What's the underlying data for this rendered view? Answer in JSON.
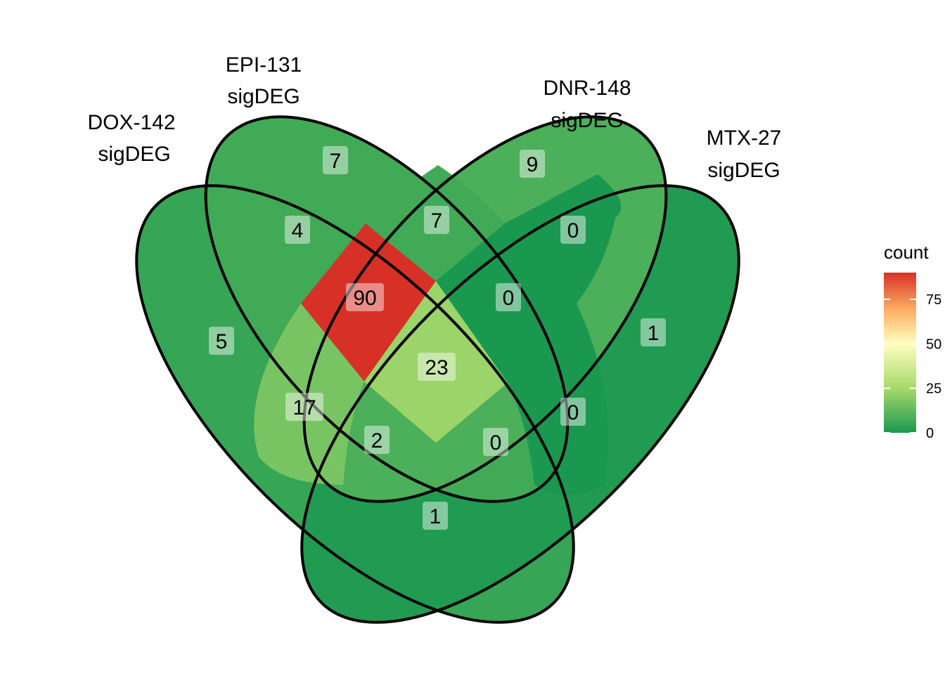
{
  "sets": [
    {
      "id": "dox",
      "title": "DOX-142",
      "subtitle": "sigDEG"
    },
    {
      "id": "epi",
      "title": "EPI-131",
      "subtitle": "sigDEG"
    },
    {
      "id": "dnr",
      "title": "DNR-148",
      "subtitle": "sigDEG"
    },
    {
      "id": "mtx",
      "title": "MTX-27",
      "subtitle": "sigDEG"
    }
  ],
  "regions": [
    {
      "sets": [
        "dox"
      ],
      "count": 5
    },
    {
      "sets": [
        "epi"
      ],
      "count": 7
    },
    {
      "sets": [
        "dnr"
      ],
      "count": 9
    },
    {
      "sets": [
        "mtx"
      ],
      "count": 1
    },
    {
      "sets": [
        "dox",
        "epi"
      ],
      "count": 4
    },
    {
      "sets": [
        "epi",
        "dnr"
      ],
      "count": 7
    },
    {
      "sets": [
        "dnr",
        "mtx"
      ],
      "count": 0
    },
    {
      "sets": [
        "dox",
        "epi",
        "dnr"
      ],
      "count": 90
    },
    {
      "sets": [
        "epi",
        "dnr",
        "mtx"
      ],
      "count": 0
    },
    {
      "sets": [
        "dox",
        "dnr"
      ],
      "count": 17
    },
    {
      "sets": [
        "dox",
        "epi",
        "dnr",
        "mtx"
      ],
      "count": 23
    },
    {
      "sets": [
        "epi",
        "mtx"
      ],
      "count": 0
    },
    {
      "sets": [
        "dox",
        "dnr",
        "mtx"
      ],
      "count": 2
    },
    {
      "sets": [
        "dox",
        "epi",
        "mtx"
      ],
      "count": 0
    },
    {
      "sets": [
        "dox",
        "mtx"
      ],
      "count": 1
    }
  ],
  "legend": {
    "title": "count",
    "ticks": [
      0,
      25,
      50,
      75
    ],
    "tick_labels": [
      "0",
      "25",
      "50",
      "75"
    ],
    "range": [
      0,
      90
    ],
    "colors": [
      "#1a9850",
      "#a6d96a",
      "#ffffbf",
      "#fdae61",
      "#d73027"
    ]
  }
}
